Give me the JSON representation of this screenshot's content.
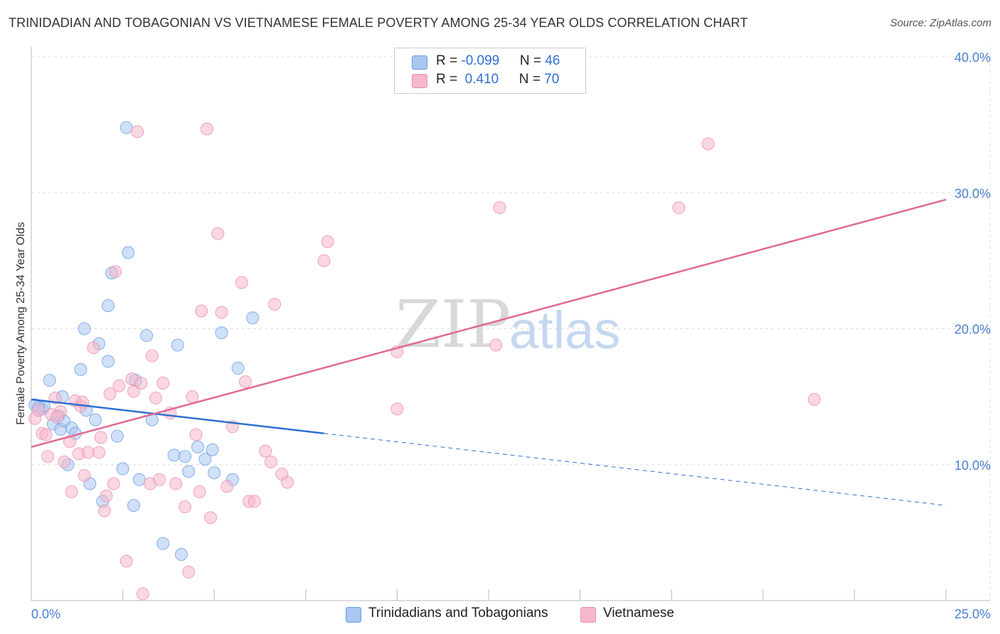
{
  "header": {
    "title": "TRINIDADIAN AND TOBAGONIAN VS VIETNAMESE FEMALE POVERTY AMONG 25-34 YEAR OLDS CORRELATION CHART",
    "source": "Source: ZipAtlas.com"
  },
  "watermark": {
    "zip": "ZIP",
    "atlas": "atlas"
  },
  "legend": {
    "rows": [
      {
        "r_label": "R = ",
        "r_value": "-0.099",
        "n_label": "N = ",
        "n_value": "46",
        "color": "#a9c7f0"
      },
      {
        "r_label": "R = ",
        "r_value": " 0.410",
        "n_label": "N = ",
        "n_value": "70",
        "color": "#f5b7cb"
      }
    ]
  },
  "bottom_legend": {
    "items": [
      {
        "label": "Trinidadians and Tobagonians",
        "color": "#a9c7f0"
      },
      {
        "label": "Vietnamese",
        "color": "#f5b7cb"
      }
    ]
  },
  "chart_data": {
    "type": "scatter",
    "title": "TRINIDADIAN AND TOBAGONIAN VS VIETNAMESE FEMALE POVERTY AMONG 25-34 YEAR OLDS CORRELATION CHART",
    "xlabel": "",
    "ylabel": "Female Poverty Among 25-34 Year Olds",
    "xlim": [
      0,
      25
    ],
    "ylim": [
      0,
      40
    ],
    "x_tick_labels": [
      "0.0%",
      "25.0%"
    ],
    "y_ticks": [
      10,
      20,
      30,
      40
    ],
    "y_tick_labels": [
      "10.0%",
      "20.0%",
      "30.0%",
      "40.0%"
    ],
    "grid": true,
    "series": [
      {
        "name": "Trinidadians and Tobagonians",
        "color": "#6a9ee6",
        "fill": "#a9c7f0",
        "r": -0.099,
        "n": 46,
        "trend": {
          "x0": 0.0,
          "y0": 14.8,
          "x1": 8.0,
          "y1": 12.3,
          "dash_to_x": 25.0,
          "dash_to_y": 7.0,
          "color": "#2f6fd0"
        },
        "points": [
          [
            0.1,
            14.4
          ],
          [
            0.3,
            14.1
          ],
          [
            0.35,
            14.3
          ],
          [
            0.5,
            16.2
          ],
          [
            0.6,
            13.0
          ],
          [
            0.75,
            13.6
          ],
          [
            0.8,
            12.6
          ],
          [
            0.85,
            15.0
          ],
          [
            0.9,
            13.2
          ],
          [
            1.0,
            10.0
          ],
          [
            1.1,
            12.7
          ],
          [
            1.2,
            12.3
          ],
          [
            1.35,
            17.0
          ],
          [
            1.45,
            20.0
          ],
          [
            1.5,
            14.0
          ],
          [
            1.6,
            8.6
          ],
          [
            1.75,
            13.3
          ],
          [
            1.85,
            18.9
          ],
          [
            1.95,
            7.3
          ],
          [
            2.1,
            21.7
          ],
          [
            2.1,
            17.6
          ],
          [
            2.2,
            24.1
          ],
          [
            2.35,
            12.1
          ],
          [
            2.5,
            9.7
          ],
          [
            2.6,
            34.8
          ],
          [
            2.65,
            25.6
          ],
          [
            2.8,
            7.0
          ],
          [
            2.85,
            16.2
          ],
          [
            2.95,
            8.9
          ],
          [
            3.15,
            19.5
          ],
          [
            3.3,
            13.3
          ],
          [
            3.6,
            4.2
          ],
          [
            3.9,
            10.7
          ],
          [
            4.0,
            18.8
          ],
          [
            4.1,
            3.4
          ],
          [
            4.2,
            10.6
          ],
          [
            4.3,
            9.5
          ],
          [
            4.55,
            11.3
          ],
          [
            4.75,
            10.4
          ],
          [
            4.95,
            11.1
          ],
          [
            5.0,
            9.4
          ],
          [
            5.2,
            19.7
          ],
          [
            5.5,
            8.9
          ],
          [
            5.65,
            17.1
          ],
          [
            6.05,
            20.8
          ],
          [
            0.2,
            14.2
          ]
        ]
      },
      {
        "name": "Vietnamese",
        "color": "#ee8fb0",
        "fill": "#f5b7cb",
        "r": 0.41,
        "n": 70,
        "trend": {
          "x0": 0.0,
          "y0": 11.3,
          "x1": 25.0,
          "y1": 29.5,
          "color": "#e06b94"
        },
        "points": [
          [
            0.1,
            13.4
          ],
          [
            0.3,
            12.3
          ],
          [
            0.45,
            10.6
          ],
          [
            0.55,
            13.7
          ],
          [
            0.65,
            14.9
          ],
          [
            0.8,
            13.9
          ],
          [
            0.9,
            10.2
          ],
          [
            1.05,
            11.7
          ],
          [
            1.1,
            8.0
          ],
          [
            1.2,
            14.7
          ],
          [
            1.3,
            10.8
          ],
          [
            1.35,
            14.3
          ],
          [
            1.45,
            9.2
          ],
          [
            1.55,
            10.9
          ],
          [
            1.7,
            18.6
          ],
          [
            1.85,
            10.9
          ],
          [
            1.9,
            12.0
          ],
          [
            2.0,
            6.6
          ],
          [
            2.05,
            7.7
          ],
          [
            2.15,
            15.2
          ],
          [
            2.25,
            8.6
          ],
          [
            2.3,
            24.2
          ],
          [
            2.6,
            2.9
          ],
          [
            2.75,
            16.3
          ],
          [
            2.8,
            15.4
          ],
          [
            2.9,
            34.5
          ],
          [
            3.0,
            16.0
          ],
          [
            3.05,
            0.5
          ],
          [
            3.25,
            8.6
          ],
          [
            3.3,
            18.0
          ],
          [
            3.4,
            14.9
          ],
          [
            3.5,
            8.9
          ],
          [
            3.6,
            16.0
          ],
          [
            3.8,
            13.8
          ],
          [
            3.95,
            8.6
          ],
          [
            4.2,
            6.9
          ],
          [
            4.3,
            2.1
          ],
          [
            4.4,
            15.0
          ],
          [
            4.5,
            12.2
          ],
          [
            4.6,
            8.0
          ],
          [
            4.65,
            21.3
          ],
          [
            4.8,
            34.7
          ],
          [
            4.9,
            6.1
          ],
          [
            5.1,
            27.0
          ],
          [
            5.2,
            21.2
          ],
          [
            5.35,
            8.4
          ],
          [
            5.5,
            12.8
          ],
          [
            5.75,
            23.4
          ],
          [
            5.85,
            16.1
          ],
          [
            5.95,
            7.3
          ],
          [
            6.1,
            7.3
          ],
          [
            6.4,
            11.0
          ],
          [
            6.55,
            10.2
          ],
          [
            6.65,
            21.8
          ],
          [
            6.85,
            9.3
          ],
          [
            7.0,
            8.7
          ],
          [
            8.0,
            25.0
          ],
          [
            8.1,
            26.4
          ],
          [
            10.0,
            18.3
          ],
          [
            10.0,
            14.1
          ],
          [
            12.7,
            18.8
          ],
          [
            12.8,
            28.9
          ],
          [
            17.7,
            28.9
          ],
          [
            18.5,
            33.6
          ],
          [
            21.4,
            14.8
          ],
          [
            0.2,
            14.0
          ],
          [
            0.4,
            12.2
          ],
          [
            0.7,
            13.5
          ],
          [
            1.4,
            14.6
          ],
          [
            2.4,
            15.8
          ]
        ]
      }
    ]
  }
}
